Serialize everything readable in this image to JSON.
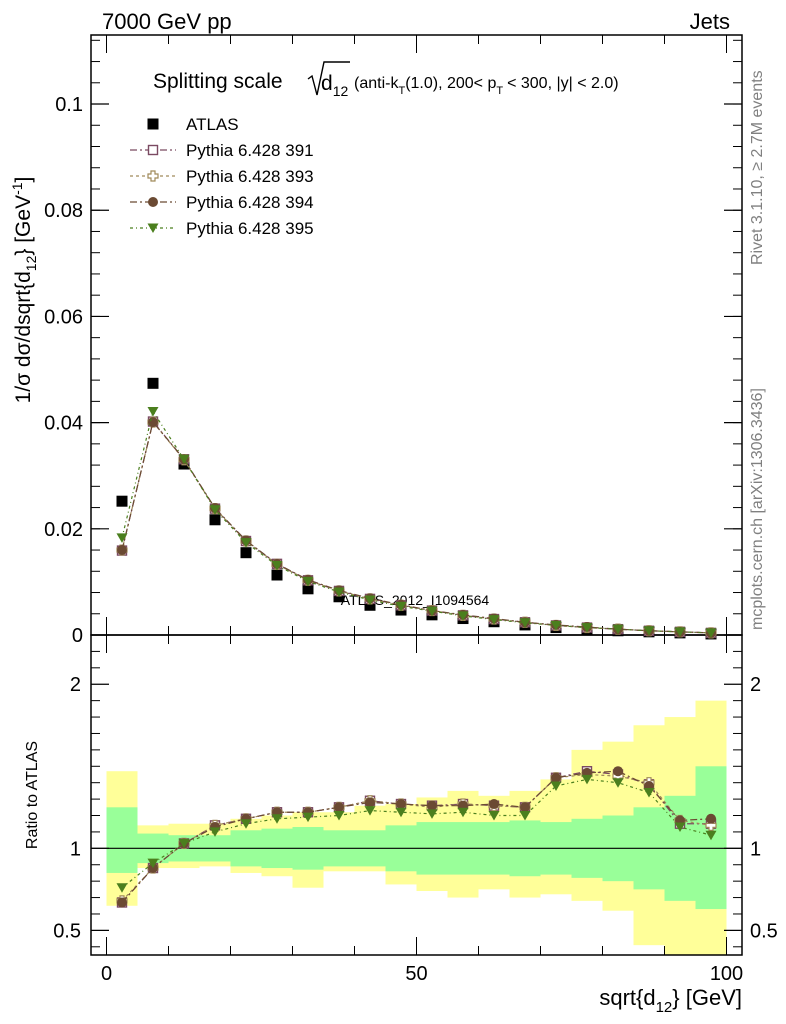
{
  "header": {
    "left": "7000 GeV pp",
    "right": "Jets"
  },
  "title": {
    "prefix": "Splitting scale",
    "sqrt_var": "d",
    "sqrt_sub": "12",
    "details_a": "(anti-k",
    "details_a_sub": "T",
    "details_b": "(1.0), 200< p",
    "details_b_sub": "T",
    "details_c": "< 300, |y| < 2.0)"
  },
  "side_text": {
    "rivet": "Rivet 3.1.10, ≥ 2.7M events",
    "mcplots": "mcplots.cern.ch [arXiv:1306.3436]"
  },
  "watermark": "ATLAS_2012_I1094564",
  "colors": {
    "atlas": "#000000",
    "p391": "#7b4a62",
    "p393": "#a08a5a",
    "p394": "#6b4a33",
    "p395": "#4b7f1e",
    "band_inner": "#99ff99",
    "band_outer": "#ffff99"
  },
  "chart_data": {
    "type": "scatter",
    "x": [
      2.5,
      7.5,
      12.5,
      17.5,
      22.5,
      27.5,
      32.5,
      37.5,
      42.5,
      47.5,
      52.5,
      57.5,
      62.5,
      67.5,
      72.5,
      77.5,
      82.5,
      87.5,
      92.5,
      97.5
    ],
    "xlabel": "sqrt{d",
    "xlabel_sub": "12",
    "xlabel_end": "} [GeV]",
    "xlim": [
      -2.5,
      102.5
    ],
    "xticks": [
      0,
      50,
      100
    ],
    "main": {
      "ylabel_a": "1/σ dσ/dsqrt{d",
      "ylabel_sub": "12",
      "ylabel_b": "} [GeV",
      "ylabel_sup": "-1",
      "ylabel_c": "]",
      "ylim": [
        0,
        0.113
      ],
      "yticks": [
        0,
        0.02,
        0.04,
        0.06,
        0.08,
        0.1
      ],
      "ytick_labels": [
        "0",
        "0.02",
        "0.04",
        "0.06",
        "0.08",
        "0.1"
      ]
    },
    "ratio": {
      "ylabel": "Ratio to ATLAS",
      "ylim": [
        0.35,
        2.3
      ],
      "yticks": [
        0.5,
        1,
        2
      ],
      "ytick_labels": [
        "0.5",
        "1",
        "2"
      ],
      "band_inner": [
        [
          0.85,
          1.25
        ],
        [
          0.91,
          1.09
        ],
        [
          0.92,
          1.08
        ],
        [
          0.92,
          1.08
        ],
        [
          0.89,
          1.11
        ],
        [
          0.88,
          1.12
        ],
        [
          0.87,
          1.13
        ],
        [
          0.89,
          1.11
        ],
        [
          0.89,
          1.11
        ],
        [
          0.86,
          1.14
        ],
        [
          0.84,
          1.16
        ],
        [
          0.84,
          1.16
        ],
        [
          0.84,
          1.16
        ],
        [
          0.83,
          1.17
        ],
        [
          0.84,
          1.16
        ],
        [
          0.82,
          1.18
        ],
        [
          0.8,
          1.2
        ],
        [
          0.75,
          1.25
        ],
        [
          0.68,
          1.32
        ],
        [
          0.63,
          1.5
        ]
      ],
      "band_outer": [
        [
          0.65,
          1.47
        ],
        [
          0.88,
          1.14
        ],
        [
          0.88,
          1.15
        ],
        [
          0.89,
          1.15
        ],
        [
          0.85,
          1.18
        ],
        [
          0.83,
          1.2
        ],
        [
          0.76,
          1.22
        ],
        [
          0.86,
          1.22
        ],
        [
          0.86,
          1.26
        ],
        [
          0.78,
          1.27
        ],
        [
          0.74,
          1.31
        ],
        [
          0.7,
          1.35
        ],
        [
          0.75,
          1.32
        ],
        [
          0.7,
          1.35
        ],
        [
          0.72,
          1.42
        ],
        [
          0.68,
          1.6
        ],
        [
          0.62,
          1.65
        ],
        [
          0.41,
          1.75
        ],
        [
          0.35,
          1.8
        ],
        [
          0.35,
          1.9
        ]
      ]
    },
    "series": [
      {
        "name": "ATLAS",
        "marker": "filled-square",
        "values": [
          0.0252,
          0.0474,
          0.0322,
          0.0217,
          0.0155,
          0.0113,
          0.0087,
          0.0072,
          0.0056,
          0.0047,
          0.0038,
          0.0031,
          0.0025,
          0.0019,
          0.0014,
          0.0011,
          0.0008,
          0.0006,
          0.0004,
          0.0002
        ],
        "ratio": []
      },
      {
        "name": "Pythia 6.428 391",
        "marker": "open-square",
        "values": [
          0.0159,
          0.0402,
          0.0331,
          0.0238,
          0.0177,
          0.0134,
          0.0103,
          0.0083,
          0.0068,
          0.0056,
          0.0046,
          0.0037,
          0.003,
          0.0024,
          0.0018,
          0.0014,
          0.0011,
          0.0008,
          0.0006,
          0.0004
        ],
        "ratio": [
          0.67,
          0.88,
          1.03,
          1.14,
          1.18,
          1.22,
          1.22,
          1.25,
          1.29,
          1.27,
          1.26,
          1.27,
          1.26,
          1.25,
          1.43,
          1.47,
          1.45,
          1.39,
          1.15,
          1.15
        ]
      },
      {
        "name": "Pythia 6.428 393",
        "marker": "open-cross",
        "values": [
          0.016,
          0.0401,
          0.033,
          0.0238,
          0.0177,
          0.0133,
          0.0103,
          0.0083,
          0.0068,
          0.0056,
          0.0046,
          0.0037,
          0.003,
          0.0024,
          0.0018,
          0.0014,
          0.0011,
          0.0008,
          0.0006,
          0.0004
        ],
        "ratio": [
          0.68,
          0.88,
          1.03,
          1.14,
          1.18,
          1.22,
          1.22,
          1.25,
          1.29,
          1.27,
          1.25,
          1.27,
          1.26,
          1.25,
          1.43,
          1.45,
          1.44,
          1.4,
          1.17,
          1.14
        ]
      },
      {
        "name": "Pythia 6.428 394",
        "marker": "filled-circle",
        "values": [
          0.016,
          0.0401,
          0.0331,
          0.0239,
          0.0178,
          0.0134,
          0.0104,
          0.0084,
          0.0069,
          0.0057,
          0.0046,
          0.0038,
          0.0031,
          0.0024,
          0.0019,
          0.0015,
          0.0011,
          0.0008,
          0.0006,
          0.0004
        ],
        "ratio": [
          0.67,
          0.88,
          1.03,
          1.13,
          1.18,
          1.22,
          1.22,
          1.25,
          1.28,
          1.27,
          1.26,
          1.26,
          1.27,
          1.25,
          1.43,
          1.46,
          1.47,
          1.38,
          1.17,
          1.18
        ]
      },
      {
        "name": "Pythia 6.428 395",
        "marker": "filled-triangle-down",
        "values": [
          0.0183,
          0.0421,
          0.0331,
          0.0236,
          0.0174,
          0.0131,
          0.0101,
          0.0081,
          0.0066,
          0.0054,
          0.0045,
          0.0036,
          0.0029,
          0.0023,
          0.0018,
          0.0014,
          0.0011,
          0.0008,
          0.0006,
          0.0004
        ],
        "ratio": [
          0.76,
          0.91,
          1.03,
          1.1,
          1.15,
          1.18,
          1.19,
          1.2,
          1.23,
          1.22,
          1.21,
          1.22,
          1.2,
          1.2,
          1.38,
          1.42,
          1.4,
          1.34,
          1.13,
          1.08
        ]
      }
    ]
  }
}
